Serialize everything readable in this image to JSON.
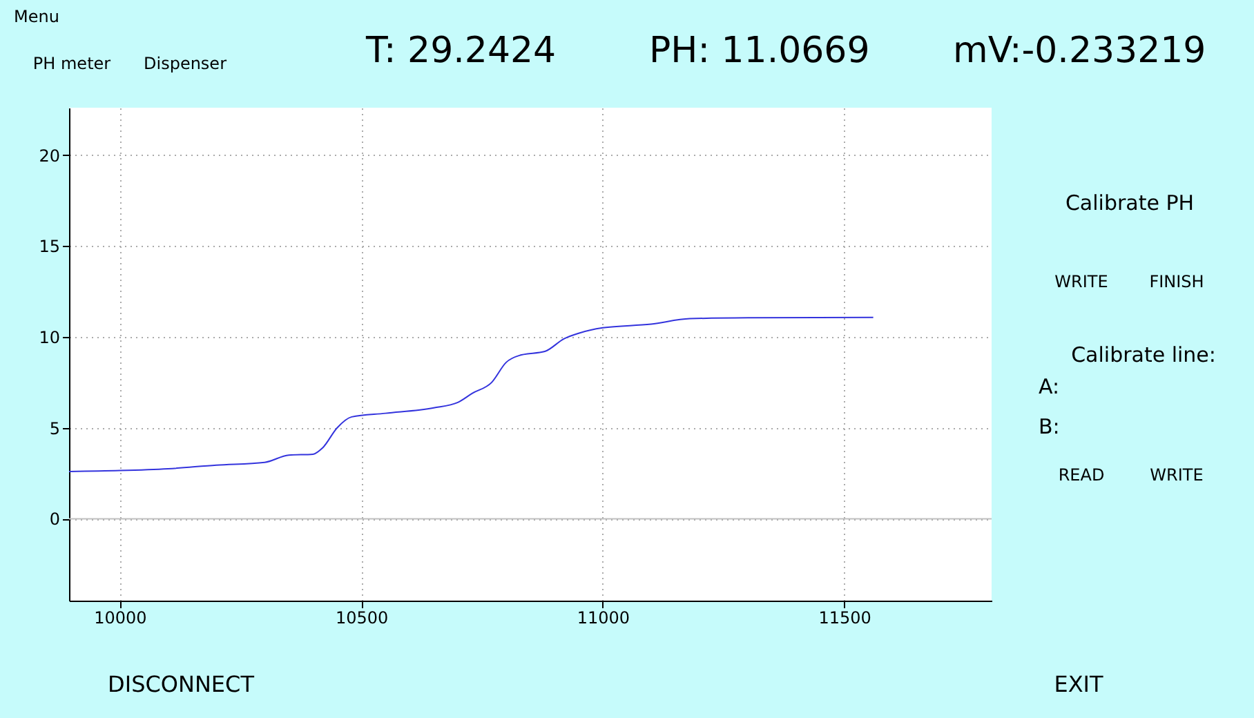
{
  "chart_data": {
    "type": "line",
    "x": [
      9895,
      10000,
      10100,
      10200,
      10300,
      10350,
      10400,
      10420,
      10450,
      10480,
      10550,
      10650,
      10700,
      10730,
      10770,
      10800,
      10830,
      10880,
      10920,
      10950,
      11000,
      11100,
      11180,
      11300,
      11560
    ],
    "series": [
      {
        "color": "#3333dd",
        "values": [
          2.6,
          2.65,
          2.75,
          2.95,
          3.1,
          3.5,
          3.55,
          3.9,
          5.0,
          5.6,
          5.8,
          6.1,
          6.4,
          6.9,
          7.5,
          8.6,
          9.0,
          9.2,
          9.9,
          10.2,
          10.5,
          10.7,
          11.0,
          11.05,
          11.07
        ]
      }
    ],
    "xlim": [
      9895,
      11805
    ],
    "xticks": [
      10000,
      10500,
      11000,
      11500
    ],
    "ylim": [
      -4.5,
      22.6
    ],
    "yticks": [
      0,
      5,
      10,
      15,
      20
    ],
    "grid": true,
    "ref_lines": [
      {
        "axis": "y",
        "value": 0,
        "color": "#c0c0c0"
      }
    ],
    "annotations": [
      "Menu",
      "T:  29.2424",
      "PH: 11.0669",
      "mV:-0.233219",
      "PH meter",
      "Dispenser",
      "Calibrate PH",
      "WRITE",
      "FINISH",
      "Calibrate line:",
      "A:",
      "B:",
      "READ",
      "WRITE",
      "DISCONNECT",
      "EXIT"
    ]
  }
}
